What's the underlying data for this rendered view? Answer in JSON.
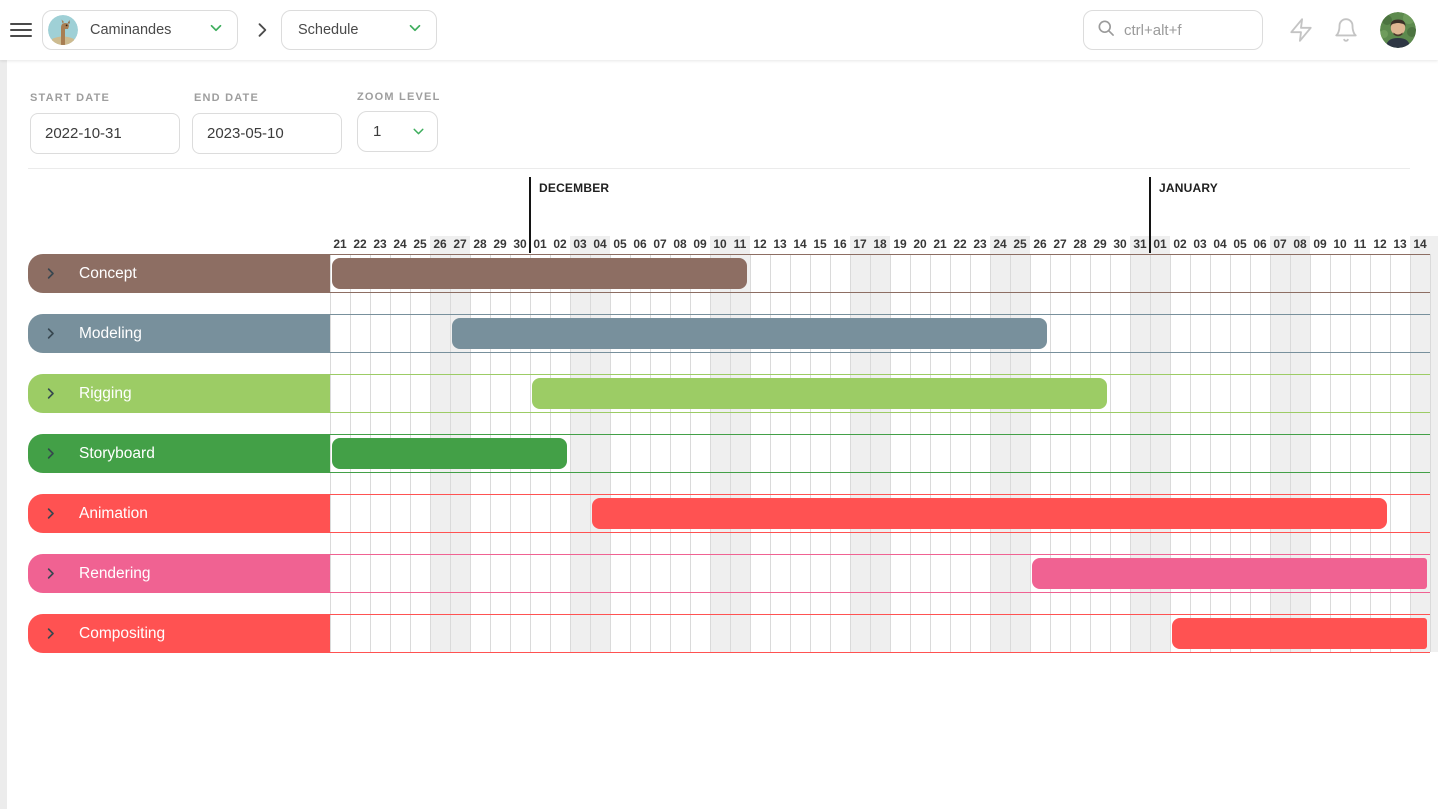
{
  "topbar": {
    "project": {
      "name": "Caminandes",
      "avatar": "llama-icon"
    },
    "section": "Schedule",
    "search": {
      "placeholder": "ctrl+alt+f"
    },
    "icons": [
      "menu-icon",
      "breadcrumb-chevron-icon",
      "zap-icon",
      "bell-icon",
      "user-avatar"
    ]
  },
  "controls": {
    "start_date": {
      "label": "START DATE",
      "value": "2022-10-31"
    },
    "end_date": {
      "label": "END DATE",
      "value": "2023-05-10"
    },
    "zoom": {
      "label": "ZOOM LEVEL",
      "value": "1"
    }
  },
  "chart_data": {
    "type": "gantt-timeline",
    "months": [
      {
        "label": "DECEMBER",
        "day_index": 10
      },
      {
        "label": "JANUARY",
        "day_index": 41
      }
    ],
    "day_segments": [
      {
        "month": "November",
        "from": 21,
        "to": 30
      },
      {
        "month": "December",
        "from": 1,
        "to": 31
      },
      {
        "month": "January",
        "from": 1,
        "to": 14
      }
    ],
    "weekend_indices": [
      5,
      6,
      12,
      13,
      19,
      20,
      26,
      27,
      33,
      34,
      40,
      41,
      47,
      48,
      54,
      55
    ],
    "rows": [
      {
        "label": "Concept",
        "color": "#8d6e63",
        "bar": {
          "start_index": 0,
          "end_index": 20,
          "start_date": "2022-11-21",
          "end_date": "2022-12-11",
          "clipped_right": false
        }
      },
      {
        "label": "Modeling",
        "color": "#78909c",
        "bar": {
          "start_index": 6,
          "end_index": 35,
          "start_date": "2022-11-27",
          "end_date": "2022-12-26",
          "clipped_right": false
        }
      },
      {
        "label": "Rigging",
        "color": "#9ccc65",
        "bar": {
          "start_index": 10,
          "end_index": 38,
          "start_date": "2022-12-01",
          "end_date": "2022-12-29",
          "clipped_right": false
        }
      },
      {
        "label": "Storyboard",
        "color": "#43a047",
        "bar": {
          "start_index": 0,
          "end_index": 11,
          "start_date": "2022-11-21",
          "end_date": "2022-12-02",
          "clipped_right": false
        }
      },
      {
        "label": "Animation",
        "color": "#ff5252",
        "bar": {
          "start_index": 13,
          "end_index": 52,
          "start_date": "2022-12-04",
          "end_date": "2023-01-12",
          "clipped_right": false
        }
      },
      {
        "label": "Rendering",
        "color": "#f06292",
        "bar": {
          "start_index": 35,
          "end_index": 55,
          "start_date": "2022-12-26",
          "end_date": "beyond-visible-range",
          "clipped_right": true
        }
      },
      {
        "label": "Compositing",
        "color": "#ff5252",
        "bar": {
          "start_index": 42,
          "end_index": 55,
          "start_date": "2023-01-02",
          "end_date": "beyond-visible-range",
          "clipped_right": true
        }
      }
    ]
  },
  "colors": {
    "weekend_shade": "#efefef",
    "grid_line": "#dadada",
    "accent_green": "#3fae5e",
    "icon_gray": "#c4c4c4",
    "text_dark": "#4a4a4a"
  }
}
